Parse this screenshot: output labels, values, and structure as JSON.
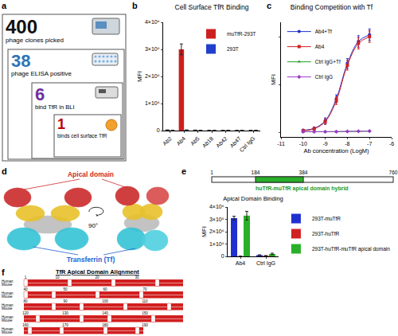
{
  "panel_labels": [
    "a",
    "b",
    "c",
    "d",
    "e",
    "f"
  ],
  "screening_funnel": [
    {
      "count": 400,
      "label": "phage clones picked"
    },
    {
      "count": 38,
      "label": "phage ELISA positive"
    },
    {
      "count": 6,
      "label": "bind TfR in BLI"
    },
    {
      "count": 1,
      "label": "binds cell surface TfR"
    }
  ],
  "chart_data": [
    {
      "type": "bar",
      "title": "Cell Surface TfR Binding",
      "y_label": "MFI",
      "categories": [
        "Ab2",
        "Ab4",
        "Ab5",
        "Ab18",
        "Ab42",
        "Ab47",
        "Ctrl IgG"
      ],
      "series": [
        {
          "name": "muTfR-293T",
          "color": "#cc1f1f",
          "values": [
            20000,
            3000000,
            15000,
            10000,
            10000,
            10000,
            10000
          ],
          "errors": [
            5000,
            200000,
            5000,
            5000,
            5000,
            5000,
            5000
          ]
        },
        {
          "name": "293T",
          "color": "#1f3fcc",
          "values": [
            10000,
            20000,
            10000,
            10000,
            10000,
            10000,
            10000
          ],
          "errors": [
            5000,
            5000,
            5000,
            5000,
            5000,
            5000,
            5000
          ]
        }
      ],
      "ylim": [
        0,
        4000000
      ],
      "yticks": [
        0,
        {
          "value": 1000000,
          "label": "1×10⁶"
        },
        {
          "value": 2000000,
          "label": "2×10⁶"
        },
        {
          "value": 3000000,
          "label": "3×10⁶"
        },
        {
          "value": 4000000,
          "label": "4×10⁶"
        }
      ],
      "grid": false,
      "legend": "top-right"
    },
    {
      "type": "line",
      "title": "Binding Competition with Tf",
      "x_label": "Ab concentration (LogM)",
      "y_label": "MFI",
      "x": [
        -10,
        -9.5,
        -9,
        -8.5,
        -8,
        -7.5,
        -7
      ],
      "series": [
        {
          "name": "Ab4+Tf",
          "color": "#1f2fd0",
          "marker": "circle",
          "values": [
            20000,
            40000,
            120000,
            350000,
            720000,
            950000,
            1020000
          ],
          "errors": [
            10000,
            15000,
            30000,
            40000,
            50000,
            60000,
            60000
          ]
        },
        {
          "name": "Ab4",
          "color": "#d02020",
          "marker": "square",
          "values": [
            15000,
            35000,
            110000,
            330000,
            700000,
            930000,
            1000000
          ],
          "errors": [
            10000,
            15000,
            30000,
            40000,
            50000,
            60000,
            60000
          ]
        },
        {
          "name": "Ctrl IgG+Tf",
          "color": "#20a020",
          "marker": "triangle-up",
          "values": [
            5000,
            5000,
            5000,
            5000,
            8000,
            8000,
            10000
          ]
        },
        {
          "name": "Ctrl IgG",
          "color": "#9a3cc8",
          "marker": "diamond",
          "values": [
            5000,
            5000,
            5000,
            6000,
            8000,
            10000,
            12000
          ]
        }
      ],
      "xlim": [
        -11,
        -6
      ],
      "xticks": [
        -11,
        -10,
        -9,
        -8,
        -7,
        -6
      ],
      "ylim": [
        -50000,
        1150000
      ],
      "yticks": [
        0,
        500000,
        1000000
      ],
      "tick_labels": "x",
      "grid": false,
      "legend": "top-left"
    },
    {
      "type": "bar",
      "title": "Apical Domain Binding",
      "y_label": "MFI",
      "categories": [
        "Ab4",
        "Ctrl IgG"
      ],
      "series": [
        {
          "name": "293T-muTfR",
          "color": "#1f2fd0",
          "values": [
            3100000,
            100000
          ],
          "errors": [
            150000,
            30000
          ]
        },
        {
          "name": "293T-huTfR",
          "color": "#d02020",
          "values": [
            20000,
            50000
          ],
          "errors": [
            10000,
            20000
          ]
        },
        {
          "name": "293T-huTfR-muTfR apical domain",
          "color": "#28b028",
          "values": [
            3300000,
            200000
          ],
          "errors": [
            350000,
            60000
          ]
        }
      ],
      "ylim": [
        0,
        4000000
      ],
      "yticks": [
        0,
        {
          "value": 1000000,
          "label": "1×10⁶"
        },
        {
          "value": 2000000,
          "label": "2×10⁶"
        },
        {
          "value": 3000000,
          "label": "3×10⁶"
        },
        {
          "value": 4000000,
          "label": "4×10⁶"
        }
      ],
      "grid": false,
      "legend": "right"
    }
  ],
  "structure": {
    "apical_label": "Apical domain",
    "tf_label": "Transferrin (Tf)",
    "rotation": "90°"
  },
  "domain_map": {
    "positions": [
      1,
      184,
      384,
      760
    ],
    "label": "huTfR-muTfR apical domain hybrid"
  },
  "alignment": {
    "title": "TfR Apical Domain Alignment",
    "species": [
      "Human",
      "Mouse"
    ],
    "position_rows": [
      [
        1,
        10,
        20,
        30
      ],
      [
        40,
        50,
        60,
        70
      ],
      [
        80,
        90,
        100,
        110
      ],
      [
        120,
        130,
        140,
        150
      ],
      [
        160,
        170,
        180,
        190
      ]
    ]
  }
}
